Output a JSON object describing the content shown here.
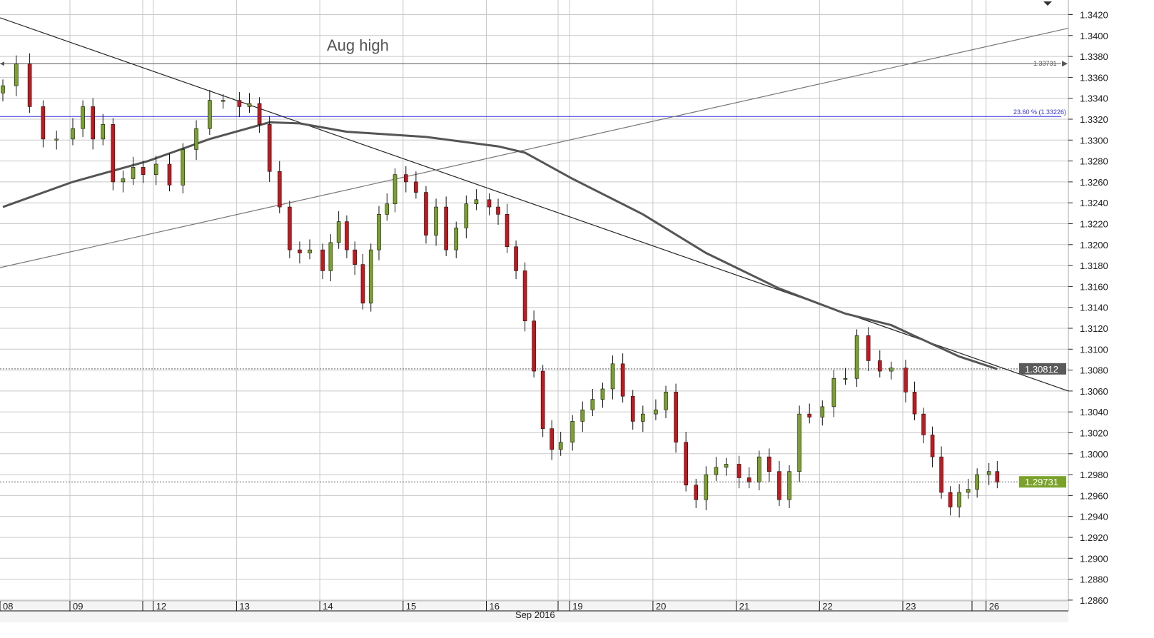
{
  "chart_data": {
    "type": "candlestick",
    "xlabel": "Sep 2016",
    "ylim": [
      1.2855,
      1.3432
    ],
    "grid": true,
    "y_ticks": [
      "1.2860",
      "1.2880",
      "1.2900",
      "1.2920",
      "1.2940",
      "1.2960",
      "1.2980",
      "1.3000",
      "1.3020",
      "1.3040",
      "1.3060",
      "1.3080",
      "1.3100",
      "1.3120",
      "1.3140",
      "1.3160",
      "1.3180",
      "1.3200",
      "1.3220",
      "1.3240",
      "1.3260",
      "1.3280",
      "1.3300",
      "1.3320",
      "1.3340",
      "1.3360",
      "1.3380",
      "1.3400",
      "1.3420"
    ],
    "days": [
      {
        "label": "08",
        "start": 0
      },
      {
        "label": "09",
        "start": 5
      },
      {
        "label": "12",
        "start": 13
      },
      {
        "label": "13",
        "start": 19
      },
      {
        "label": "14",
        "start": 27
      },
      {
        "label": "15",
        "start": 37
      },
      {
        "label": "16",
        "start": 45
      },
      {
        "label": "19",
        "start": 54
      },
      {
        "label": "20",
        "start": 62
      },
      {
        "label": "21",
        "start": 70
      },
      {
        "label": "22",
        "start": 78
      },
      {
        "label": "23",
        "start": 85
      },
      {
        "label": "26",
        "start": 94
      }
    ],
    "first_open": 1.3345,
    "closes": [
      1.3352,
      1.3373,
      1.3332,
      1.3301,
      1.3301,
      1.3311,
      1.3332,
      1.3301,
      1.3315,
      1.326,
      1.3263,
      1.3274,
      1.3267,
      1.3277,
      1.3257,
      1.3291,
      1.3311,
      1.3338,
      1.3338,
      1.3332,
      1.3335,
      1.3315,
      1.327,
      1.3236,
      1.3195,
      1.3192,
      1.3195,
      1.3175,
      1.3202,
      1.3222,
      1.3195,
      1.3181,
      1.3144,
      1.3195,
      1.3229,
      1.3239,
      1.3267,
      1.326,
      1.325,
      1.3209,
      1.3236,
      1.3195,
      1.3216,
      1.3239,
      1.3243,
      1.3236,
      1.3229,
      1.3198,
      1.3175,
      1.3127,
      1.3079,
      1.3024,
      1.3004,
      1.3011,
      1.3031,
      1.3042,
      1.3052,
      1.3062,
      1.3086,
      1.3055,
      1.3031,
      1.3038,
      1.3042,
      1.3059,
      1.3011,
      1.297,
      1.2956,
      1.298,
      1.2987,
      1.299,
      1.2977,
      1.2973,
      1.2997,
      1.2983,
      1.2956,
      1.2983,
      1.3038,
      1.3035,
      1.3045,
      1.3072,
      1.3072,
      1.3113,
      1.3089,
      1.3079,
      1.3082,
      1.3059,
      1.3038,
      1.3018,
      1.2997,
      1.2963,
      1.2949,
      1.2963,
      1.2966,
      1.298,
      1.2983,
      1.2973
    ],
    "moving_average": [
      [
        0,
        1.3236
      ],
      [
        5,
        1.326
      ],
      [
        12.5,
        1.328
      ],
      [
        17,
        1.3301
      ],
      [
        22,
        1.3317
      ],
      [
        25,
        1.3316
      ],
      [
        30,
        1.3308
      ],
      [
        39,
        1.3303
      ],
      [
        46,
        1.3294
      ],
      [
        49,
        1.3288
      ],
      [
        54,
        1.3263
      ],
      [
        61,
        1.3229
      ],
      [
        67,
        1.3192
      ],
      [
        74,
        1.3158
      ],
      [
        80,
        1.3134
      ],
      [
        84,
        1.3123
      ],
      [
        91,
        1.3093
      ],
      [
        95,
        1.3081
      ]
    ],
    "trendlines": [
      {
        "name": "descending",
        "from": 1.3417,
        "to": 1.306
      },
      {
        "name": "ascending",
        "from": 1.3178,
        "to": 1.3407
      }
    ],
    "levels": [
      {
        "value": 1.33731,
        "label": "1.33731",
        "color": "#555555"
      },
      {
        "value": 1.33226,
        "label": "23.60 % (1.33226)",
        "color": "#3333dd"
      }
    ],
    "annotations": [
      {
        "text": "Aug high"
      }
    ],
    "price_markers": [
      {
        "value": 1.30812,
        "label": "1.30812",
        "color": "#5a5a5a"
      },
      {
        "value": 1.29731,
        "label": "1.29731",
        "color": "#7aa22a"
      }
    ],
    "colors": {
      "bull": "#7aa22a",
      "bear": "#c8161d",
      "wick": "#111111",
      "ma": "#555555",
      "grid": "#c8c8c8"
    }
  }
}
